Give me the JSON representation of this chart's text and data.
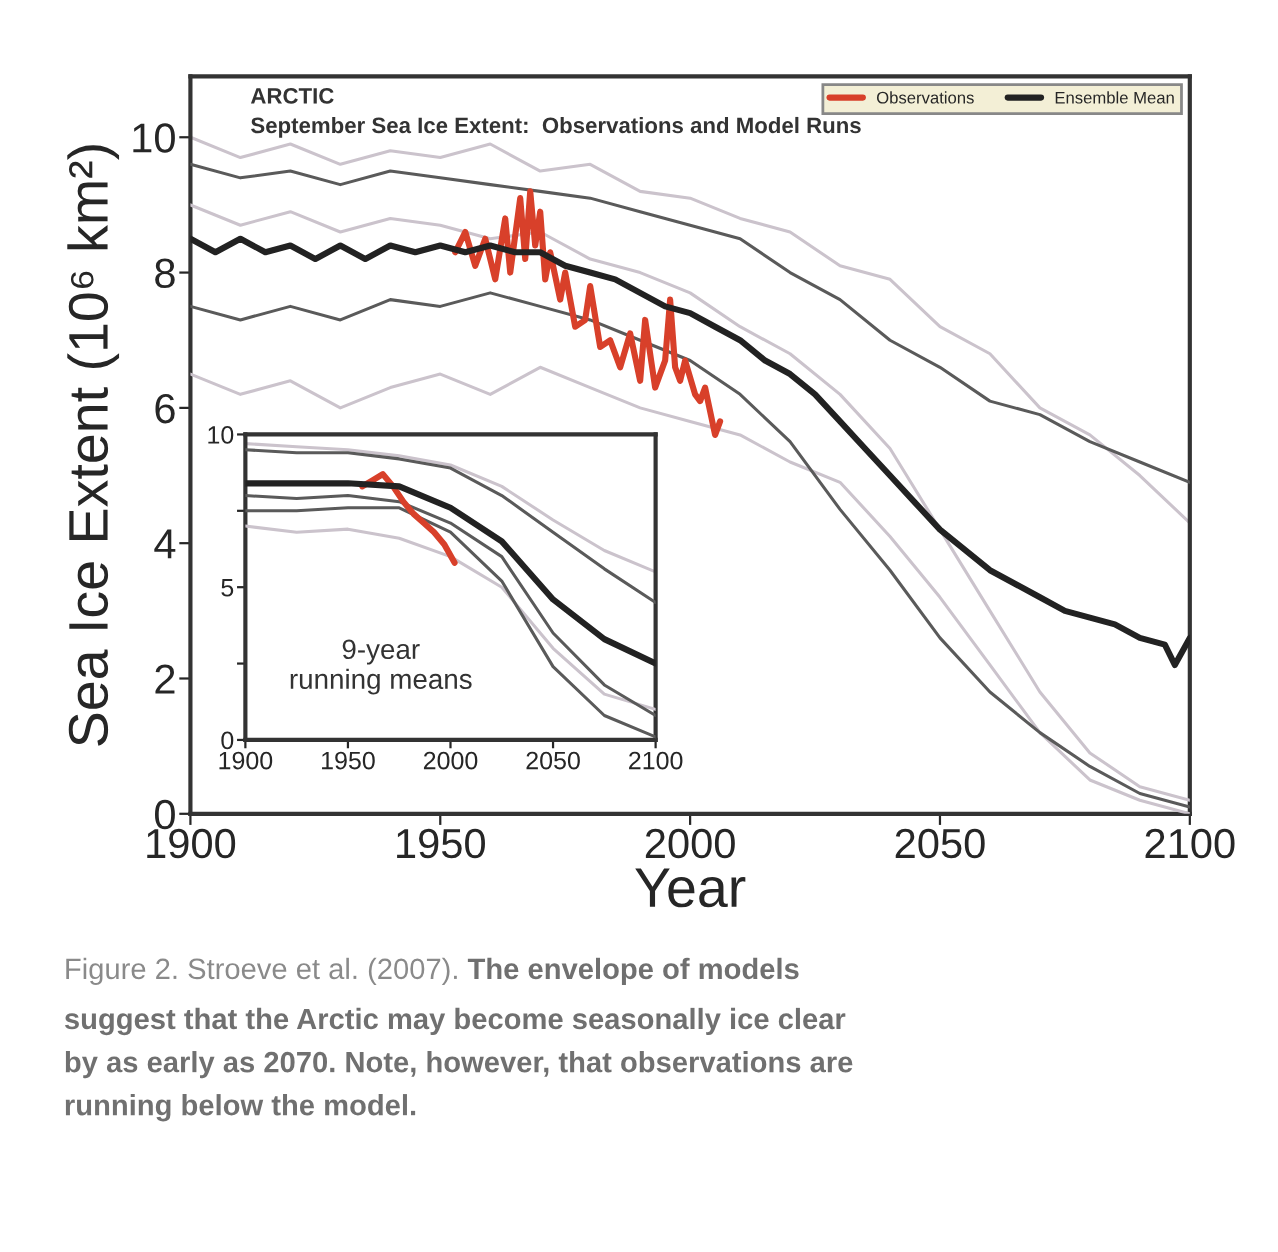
{
  "chart_data": [
    {
      "type": "line",
      "title": "ARCTIC",
      "subtitle": "September Sea Ice Extent:  Observations and Model Runs",
      "xlabel": "Year",
      "ylabel": "Sea Ice Extent (10⁶ km²)",
      "xlim": [
        1900,
        2100
      ],
      "ylim": [
        0,
        10.9
      ],
      "xticks": [
        1900,
        1950,
        2000,
        2050,
        2100
      ],
      "yticks": [
        0,
        2,
        4,
        6,
        8,
        10
      ],
      "grid": false,
      "legend": "top right",
      "marker": "none",
      "line_style": "solid",
      "series": [
        {
          "color": "#cbc3cc",
          "x": [
            1900,
            1910,
            1920,
            1930,
            1940,
            1950,
            1960,
            1970,
            1980,
            1990,
            2000,
            2010,
            2020,
            2030,
            2040,
            2050,
            2060,
            2070,
            2080,
            2090,
            2100
          ],
          "values": [
            10.0,
            9.7,
            9.9,
            9.6,
            9.8,
            9.7,
            9.9,
            9.5,
            9.6,
            9.2,
            9.1,
            8.8,
            8.6,
            8.1,
            7.9,
            7.2,
            6.8,
            6.0,
            5.6,
            5.0,
            4.3
          ]
        },
        {
          "color": "#cbc3cc",
          "x": [
            1900,
            1910,
            1920,
            1930,
            1940,
            1950,
            1960,
            1970,
            1980,
            1990,
            2000,
            2010,
            2020,
            2030,
            2040,
            2050,
            2060,
            2070,
            2080,
            2090,
            2100
          ],
          "values": [
            9.0,
            8.7,
            8.9,
            8.6,
            8.8,
            8.7,
            8.5,
            8.6,
            8.2,
            8.0,
            7.7,
            7.2,
            6.8,
            6.2,
            5.4,
            4.2,
            3.0,
            1.8,
            0.9,
            0.4,
            0.2
          ]
        },
        {
          "color": "#cbc3cc",
          "x": [
            1900,
            1910,
            1920,
            1930,
            1940,
            1950,
            1960,
            1970,
            1980,
            1990,
            2000,
            2010,
            2020,
            2030,
            2040,
            2050,
            2060,
            2070,
            2080,
            2090,
            2100
          ],
          "values": [
            6.5,
            6.2,
            6.4,
            6.0,
            6.3,
            6.5,
            6.2,
            6.6,
            6.3,
            6.0,
            5.8,
            5.6,
            5.2,
            4.9,
            4.1,
            3.2,
            2.2,
            1.2,
            0.5,
            0.2,
            0.0
          ]
        },
        {
          "color": "#5a5a5a",
          "x": [
            1900,
            1910,
            1920,
            1930,
            1940,
            1950,
            1960,
            1970,
            1980,
            1990,
            2000,
            2010,
            2020,
            2030,
            2040,
            2050,
            2060,
            2070,
            2080,
            2090,
            2100
          ],
          "values": [
            9.6,
            9.4,
            9.5,
            9.3,
            9.5,
            9.4,
            9.3,
            9.2,
            9.1,
            8.9,
            8.7,
            8.5,
            8.0,
            7.6,
            7.0,
            6.6,
            6.1,
            5.9,
            5.5,
            5.2,
            4.9
          ]
        },
        {
          "color": "#5a5a5a",
          "x": [
            1900,
            1910,
            1920,
            1930,
            1940,
            1950,
            1960,
            1970,
            1980,
            1990,
            2000,
            2010,
            2020,
            2030,
            2040,
            2050,
            2060,
            2070,
            2080,
            2090,
            2100
          ],
          "values": [
            7.5,
            7.3,
            7.5,
            7.3,
            7.6,
            7.5,
            7.7,
            7.5,
            7.3,
            7.0,
            6.7,
            6.2,
            5.5,
            4.5,
            3.6,
            2.6,
            1.8,
            1.2,
            0.7,
            0.3,
            0.1
          ]
        },
        {
          "name": "Observations",
          "color": "#d8402a",
          "x": [
            1953,
            1955,
            1957,
            1959,
            1961,
            1963,
            1964,
            1966,
            1967,
            1968,
            1969,
            1970,
            1971,
            1972,
            1974,
            1975,
            1977,
            1979,
            1980,
            1982,
            1984,
            1986,
            1988,
            1990,
            1991,
            1993,
            1995,
            1996,
            1997,
            1998,
            1999,
            2001,
            2002,
            2003,
            2005,
            2006
          ],
          "values": [
            8.3,
            8.6,
            8.1,
            8.5,
            7.9,
            8.8,
            8.0,
            9.1,
            8.2,
            9.2,
            8.4,
            8.9,
            7.9,
            8.3,
            7.6,
            8.0,
            7.2,
            7.3,
            7.8,
            6.9,
            7.0,
            6.6,
            7.1,
            6.4,
            7.3,
            6.3,
            6.7,
            7.6,
            6.6,
            6.4,
            6.7,
            6.2,
            6.1,
            6.3,
            5.6,
            5.8
          ]
        },
        {
          "name": "Ensemble Mean",
          "color": "#222222",
          "x": [
            1900,
            1905,
            1910,
            1915,
            1920,
            1925,
            1930,
            1935,
            1940,
            1945,
            1950,
            1955,
            1960,
            1965,
            1970,
            1975,
            1980,
            1985,
            1990,
            1995,
            2000,
            2005,
            2010,
            2015,
            2020,
            2025,
            2030,
            2035,
            2040,
            2045,
            2050,
            2055,
            2060,
            2065,
            2070,
            2075,
            2080,
            2085,
            2090,
            2095,
            2097,
            2100
          ],
          "values": [
            8.5,
            8.3,
            8.5,
            8.3,
            8.4,
            8.2,
            8.4,
            8.2,
            8.4,
            8.3,
            8.4,
            8.3,
            8.4,
            8.3,
            8.3,
            8.1,
            8.0,
            7.9,
            7.7,
            7.5,
            7.4,
            7.2,
            7.0,
            6.7,
            6.5,
            6.2,
            5.8,
            5.4,
            5.0,
            4.6,
            4.2,
            3.9,
            3.6,
            3.4,
            3.2,
            3.0,
            2.9,
            2.8,
            2.6,
            2.5,
            2.2,
            2.6
          ]
        }
      ],
      "annotations": [
        "Figure 2. Stroeve et al. (2007). ",
        "The envelope of models",
        "suggest that the Arctic may become seasonally ice clear\nby as early as 2070. Note, however, that observations are\nrunning below the model."
      ]
    },
    {
      "type": "line",
      "xlim": [
        1900,
        2100
      ],
      "ylim": [
        0,
        10
      ],
      "xticks": [
        1900,
        1950,
        2000,
        2050,
        2100
      ],
      "yticks": [
        0,
        {
          "value": 2.5,
          "label": null
        },
        5,
        {
          "value": 7.5,
          "label": null
        },
        10
      ],
      "grid": false,
      "marker": "none",
      "line_style": "solid",
      "series": [
        {
          "color": "#cbc3cc",
          "x": [
            1900,
            1925,
            1950,
            1975,
            2000,
            2025,
            2050,
            2075,
            2100
          ],
          "values": [
            9.7,
            9.6,
            9.5,
            9.3,
            9.0,
            8.3,
            7.2,
            6.2,
            5.5
          ]
        },
        {
          "color": "#cbc3cc",
          "x": [
            1900,
            1925,
            1950,
            1975,
            2000,
            2025,
            2050,
            2075,
            2100
          ],
          "values": [
            7.0,
            6.8,
            6.9,
            6.6,
            6.0,
            5.0,
            3.0,
            1.5,
            1.0
          ]
        },
        {
          "color": "#5a5a5a",
          "x": [
            1900,
            1925,
            1950,
            1975,
            2000,
            2025,
            2050,
            2075,
            2100
          ],
          "values": [
            9.5,
            9.4,
            9.4,
            9.2,
            8.9,
            8.0,
            6.8,
            5.6,
            4.5
          ]
        },
        {
          "color": "#5a5a5a",
          "x": [
            1900,
            1925,
            1950,
            1975,
            2000,
            2025,
            2050,
            2075,
            2100
          ],
          "values": [
            8.0,
            7.9,
            8.0,
            7.8,
            7.1,
            6.0,
            3.5,
            1.8,
            0.8
          ]
        },
        {
          "color": "#5a5a5a",
          "x": [
            1900,
            1925,
            1950,
            1975,
            2000,
            2025,
            2050,
            2075,
            2100
          ],
          "values": [
            7.5,
            7.5,
            7.6,
            7.6,
            6.8,
            5.2,
            2.4,
            0.8,
            0.1
          ]
        },
        {
          "color": "#d8402a",
          "x": [
            1957,
            1962,
            1967,
            1972,
            1977,
            1982,
            1987,
            1992,
            1997,
            2002
          ],
          "values": [
            8.3,
            8.5,
            8.7,
            8.3,
            7.8,
            7.4,
            7.1,
            6.8,
            6.4,
            5.8
          ]
        },
        {
          "color": "#222222",
          "x": [
            1900,
            1925,
            1950,
            1975,
            2000,
            2025,
            2050,
            2075,
            2100
          ],
          "values": [
            8.4,
            8.4,
            8.4,
            8.3,
            7.6,
            6.5,
            4.6,
            3.3,
            2.5
          ]
        }
      ],
      "annotations": [
        "9-year\nrunning means"
      ]
    }
  ]
}
